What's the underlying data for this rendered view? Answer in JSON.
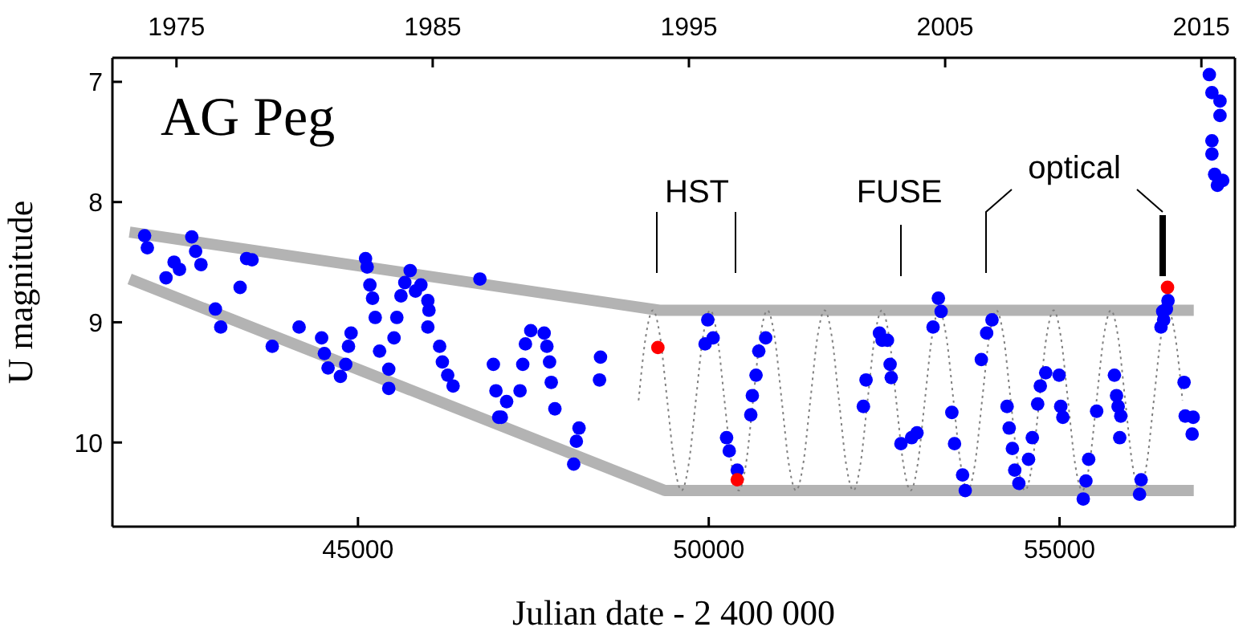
{
  "chart_data": {
    "type": "scatter",
    "title": "AG Peg",
    "xlabel": "Julian date - 2 400 000",
    "ylabel": "U magnitude",
    "xlim": [
      41500,
      57500
    ],
    "xticks": [
      45000,
      50000,
      55000
    ],
    "x2lim": [
      1972.5,
      2016.31
    ],
    "x2ticks": [
      1975,
      1985,
      1995,
      2005,
      2015
    ],
    "ylim": [
      10.7,
      6.8
    ],
    "yticks": [
      7,
      8,
      9,
      10
    ],
    "grid": false,
    "legend": false,
    "marker": "circle",
    "annotations": [
      "HST",
      "FUSE",
      "optical"
    ],
    "series": [
      {
        "color": "#0000ff",
        "x": [
          41959,
          41998,
          42264,
          42379,
          42456,
          42631,
          42686,
          42762,
          43320,
          43412,
          43490,
          42968,
          43044,
          43778,
          44161,
          44482,
          44521,
          44574,
          44750,
          44826,
          44865,
          44902,
          45108,
          45131,
          45170,
          45208,
          45246,
          45308,
          45439,
          45439,
          45514,
          45554,
          45613,
          45668,
          45744,
          45820,
          45897,
          45996,
          46012,
          45996,
          46164,
          46203,
          46279,
          46356,
          46738,
          46930,
          46967,
          47006,
          47043,
          47119,
          47310,
          47349,
          47387,
          47463,
          47654,
          47693,
          47731,
          47755,
          47807,
          48151,
          48113,
          48075,
          48457,
          48443,
          49986,
          49948,
          50062,
          50254,
          50292,
          50406,
          50812,
          50713,
          50674,
          50621,
          50599,
          52433,
          52471,
          52242,
          52204,
          52547,
          52585,
          52601,
          52739,
          52892,
          52968,
          53197,
          53273,
          53312,
          53465,
          53503,
          53618,
          53656,
          53885,
          53961,
          54037,
          54252,
          54282,
          54328,
          54361,
          54420,
          54558,
          54612,
          54688,
          54726,
          54803,
          54994,
          55017,
          55047,
          55338,
          55376,
          55415,
          55529,
          55782,
          55812,
          55835,
          56470,
          56523
        ],
        "values": [
          8.28,
          8.38,
          8.63,
          8.5,
          8.56,
          8.29,
          8.41,
          8.52,
          8.71,
          8.47,
          8.48,
          8.89,
          9.04,
          9.2,
          9.04,
          9.13,
          9.26,
          9.38,
          9.45,
          9.35,
          9.2,
          9.09,
          8.47,
          8.54,
          8.69,
          8.8,
          8.96,
          9.24,
          9.39,
          9.55,
          9.13,
          8.96,
          8.78,
          8.67,
          8.57,
          8.74,
          8.69,
          8.82,
          8.9,
          9.04,
          9.2,
          9.33,
          9.44,
          9.53,
          8.64,
          9.35,
          9.57,
          9.79,
          9.79,
          9.66,
          9.57,
          9.35,
          9.18,
          9.07,
          9.09,
          9.2,
          9.33,
          9.5,
          9.72,
          9.88,
          9.99,
          10.18,
          9.29,
          9.48,
          8.98,
          9.18,
          9.13,
          9.96,
          10.07,
          10.23,
          9.13,
          9.24,
          9.44,
          9.61,
          9.77,
          9.09,
          9.15,
          9.48,
          9.7,
          9.15,
          9.35,
          9.46,
          10.01,
          9.96,
          9.92,
          9.04,
          8.8,
          8.91,
          9.75,
          10.01,
          10.27,
          10.4,
          9.31,
          9.09,
          8.98,
          9.7,
          9.88,
          10.05,
          10.23,
          10.34,
          10.14,
          9.96,
          9.68,
          9.53,
          9.42,
          9.44,
          9.7,
          9.79,
          10.47,
          10.32,
          10.14,
          9.74,
          9.44,
          9.61,
          9.7,
          8.91,
          8.89
        ]
      },
      {
        "color": "#0000ff",
        "x": [
          55873,
          55858,
          56163,
          56140,
          56446,
          56484,
          56546,
          56775,
          56791,
          56905,
          56890,
          57135,
          57172,
          57287,
          57287,
          57172,
          57172,
          57211,
          57250,
          57326
        ],
        "values": [
          9.78,
          9.96,
          10.31,
          10.43,
          9.04,
          8.98,
          8.82,
          9.5,
          9.78,
          9.79,
          9.93,
          6.94,
          7.09,
          7.16,
          7.28,
          7.49,
          7.6,
          7.77,
          7.86,
          7.82
        ]
      },
      {
        "color": "#ff0000",
        "x": [
          49275,
          50406,
          56539
        ],
        "values": [
          9.21,
          10.31,
          8.71
        ]
      },
      {
        "type": "line",
        "color": "#b3b3b3",
        "marker": "none",
        "line_style": "solid",
        "x": [
          41745,
          49298,
          56913
        ],
        "values": [
          8.25,
          8.9,
          8.9
        ]
      },
      {
        "type": "line",
        "color": "#b3b3b3",
        "marker": "none",
        "line_style": "solid",
        "x": [
          41745,
          49374,
          56913
        ],
        "values": [
          8.64,
          10.4,
          10.4
        ]
      },
      {
        "type": "line",
        "color": "#808080",
        "marker": "none",
        "line_style": "dotted",
        "x": [
          49000,
          49102,
          49204,
          49306,
          49408,
          49510,
          49612,
          49714,
          49816,
          49918,
          50020,
          50122,
          50224,
          50326,
          50428,
          50530,
          50632,
          50734,
          50836,
          50938,
          51040,
          51142,
          51244,
          51346,
          51448,
          51550,
          51652,
          51754,
          51856,
          51958,
          52060,
          52162,
          52264,
          52366,
          52468,
          52570,
          52672,
          52774,
          52876,
          52978,
          53080,
          53182,
          53284,
          53386,
          53488,
          53590,
          53692,
          53794,
          53896,
          53998,
          54100,
          54202,
          54304,
          54406,
          54508,
          54610,
          54712,
          54814,
          54916,
          55018,
          55120,
          55222,
          55324,
          55426,
          55528,
          55630,
          55732,
          55834,
          55936,
          56038,
          56140,
          56242,
          56344,
          56446,
          56548,
          56650,
          56752
        ],
        "values": [
          9.65,
          9.12,
          8.9,
          9.12,
          9.65,
          10.18,
          10.4,
          10.18,
          9.65,
          9.12,
          8.9,
          9.12,
          9.65,
          10.18,
          10.4,
          10.18,
          9.65,
          9.12,
          8.9,
          9.12,
          9.65,
          10.18,
          10.4,
          10.18,
          9.65,
          9.12,
          8.9,
          9.12,
          9.65,
          10.18,
          10.4,
          10.18,
          9.65,
          9.12,
          8.9,
          9.12,
          9.65,
          10.18,
          10.4,
          10.18,
          9.65,
          9.12,
          8.9,
          9.12,
          9.65,
          10.18,
          10.4,
          10.18,
          9.65,
          9.12,
          8.9,
          9.12,
          9.65,
          10.18,
          10.4,
          10.18,
          9.65,
          9.12,
          8.9,
          9.12,
          9.65,
          10.18,
          10.4,
          10.18,
          9.65,
          9.12,
          8.9,
          9.12,
          9.65,
          10.18,
          10.4,
          10.18,
          9.65,
          9.12,
          8.9,
          9.12,
          9.65
        ]
      }
    ]
  }
}
